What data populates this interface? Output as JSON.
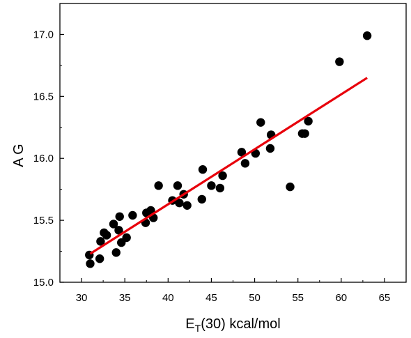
{
  "chart_data": {
    "type": "scatter",
    "title": "",
    "xlabel": {
      "main": "E",
      "sub": "T",
      "rest": "(30) kcal/mol"
    },
    "ylabel": "A G",
    "xlim": [
      27.5,
      67.5
    ],
    "ylim": [
      15.0,
      17.25
    ],
    "xticks": [
      30,
      35,
      40,
      45,
      50,
      55,
      60,
      65
    ],
    "yticks": [
      15.0,
      15.5,
      16.0,
      16.5,
      17.0
    ],
    "xtick_labels": [
      "30",
      "35",
      "40",
      "45",
      "50",
      "55",
      "60",
      "65"
    ],
    "ytick_labels": [
      "15.0",
      "15.5",
      "16.0",
      "16.5",
      "17.0"
    ],
    "grid": false,
    "legend": "none",
    "marker_color": "#000000",
    "fit_color": "#e8000b",
    "points": [
      [
        30.9,
        15.22
      ],
      [
        31.0,
        15.15
      ],
      [
        32.1,
        15.19
      ],
      [
        32.2,
        15.33
      ],
      [
        32.6,
        15.4
      ],
      [
        32.9,
        15.38
      ],
      [
        33.7,
        15.47
      ],
      [
        34.0,
        15.24
      ],
      [
        34.3,
        15.42
      ],
      [
        34.4,
        15.53
      ],
      [
        34.6,
        15.32
      ],
      [
        35.2,
        15.36
      ],
      [
        35.9,
        15.54
      ],
      [
        37.4,
        15.48
      ],
      [
        37.5,
        15.56
      ],
      [
        38.0,
        15.58
      ],
      [
        38.3,
        15.52
      ],
      [
        38.9,
        15.78
      ],
      [
        40.5,
        15.66
      ],
      [
        41.1,
        15.78
      ],
      [
        41.3,
        15.64
      ],
      [
        41.8,
        15.71
      ],
      [
        42.2,
        15.62
      ],
      [
        43.9,
        15.67
      ],
      [
        44.0,
        15.91
      ],
      [
        45.0,
        15.78
      ],
      [
        46.0,
        15.76
      ],
      [
        46.3,
        15.86
      ],
      [
        48.5,
        16.05
      ],
      [
        48.9,
        15.96
      ],
      [
        50.1,
        16.04
      ],
      [
        50.7,
        16.29
      ],
      [
        51.8,
        16.08
      ],
      [
        51.9,
        16.19
      ],
      [
        54.1,
        15.77
      ],
      [
        55.5,
        16.2
      ],
      [
        55.8,
        16.2
      ],
      [
        56.2,
        16.3
      ],
      [
        59.8,
        16.78
      ],
      [
        63.0,
        16.99
      ]
    ],
    "fit_line": {
      "x": [
        31.0,
        63.0
      ],
      "y": [
        15.23,
        16.65
      ]
    }
  }
}
